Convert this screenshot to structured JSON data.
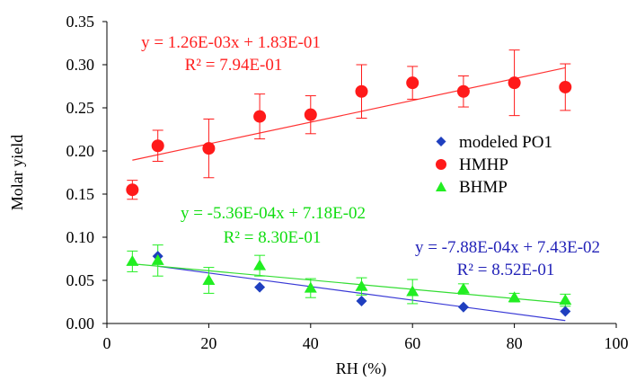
{
  "chart_data": {
    "type": "scatter",
    "xlabel": "RH (%)",
    "ylabel": "Molar yield",
    "xlim": [
      0,
      100
    ],
    "ylim": [
      0,
      0.35
    ],
    "x_ticks": [
      "0",
      "20",
      "40",
      "60",
      "80",
      "100"
    ],
    "y_ticks": [
      "0.00",
      "0.05",
      "0.10",
      "0.15",
      "0.20",
      "0.25",
      "0.30",
      "0.35"
    ],
    "grid": false,
    "legend_position": "right-middle",
    "series": [
      {
        "name": "modeled PO1",
        "marker": "diamond",
        "color": "#1f3fbf",
        "points": [
          {
            "x": 10,
            "y": 0.078
          },
          {
            "x": 30,
            "y": 0.042
          },
          {
            "x": 50,
            "y": 0.026
          },
          {
            "x": 70,
            "y": 0.019
          },
          {
            "x": 90,
            "y": 0.014
          }
        ],
        "fit": {
          "slope": -0.000788,
          "intercept": 0.0743,
          "x_range": [
            10,
            90
          ],
          "color": "#3a3ad6"
        },
        "equation": "y = -7.88E-04x + 7.43E-02",
        "r2": "R² = 8.52E-01",
        "label_color": "#2323b8"
      },
      {
        "name": "HMHP",
        "marker": "circle",
        "color": "#ff1a1a",
        "points": [
          {
            "x": 5,
            "y": 0.155,
            "err": 0.011
          },
          {
            "x": 10,
            "y": 0.206,
            "err": 0.018
          },
          {
            "x": 20,
            "y": 0.203,
            "err": 0.034
          },
          {
            "x": 30,
            "y": 0.24,
            "err": 0.026
          },
          {
            "x": 40,
            "y": 0.242,
            "err": 0.022
          },
          {
            "x": 50,
            "y": 0.269,
            "err": 0.031
          },
          {
            "x": 60,
            "y": 0.279,
            "err": 0.019
          },
          {
            "x": 70,
            "y": 0.269,
            "err": 0.018
          },
          {
            "x": 80,
            "y": 0.279,
            "err": 0.038
          },
          {
            "x": 90,
            "y": 0.274,
            "err": 0.027
          }
        ],
        "fit": {
          "slope": 0.00126,
          "intercept": 0.183,
          "x_range": [
            5,
            90
          ],
          "color": "#ff3333"
        },
        "equation": "y = 1.26E-03x + 1.83E-01",
        "r2": "R² = 7.94E-01",
        "label_color": "#ff2020"
      },
      {
        "name": "BHMP",
        "marker": "triangle",
        "color": "#22ee22",
        "points": [
          {
            "x": 5,
            "y": 0.072,
            "err": 0.012
          },
          {
            "x": 10,
            "y": 0.073,
            "err": 0.018
          },
          {
            "x": 20,
            "y": 0.05,
            "err": 0.015
          },
          {
            "x": 30,
            "y": 0.067,
            "err": 0.012
          },
          {
            "x": 40,
            "y": 0.041,
            "err": 0.011
          },
          {
            "x": 50,
            "y": 0.043,
            "err": 0.01
          },
          {
            "x": 60,
            "y": 0.037,
            "err": 0.014
          },
          {
            "x": 70,
            "y": 0.04,
            "err": 0.006
          },
          {
            "x": 80,
            "y": 0.03,
            "err": 0.005
          },
          {
            "x": 90,
            "y": 0.027,
            "err": 0.007
          }
        ],
        "fit": {
          "slope": -0.000536,
          "intercept": 0.0718,
          "x_range": [
            5,
            90
          ],
          "color": "#33dd33"
        },
        "equation": "y = -5.36E-04x + 7.18E-02",
        "r2": "R² = 8.30E-01",
        "label_color": "#11dd11"
      }
    ]
  }
}
